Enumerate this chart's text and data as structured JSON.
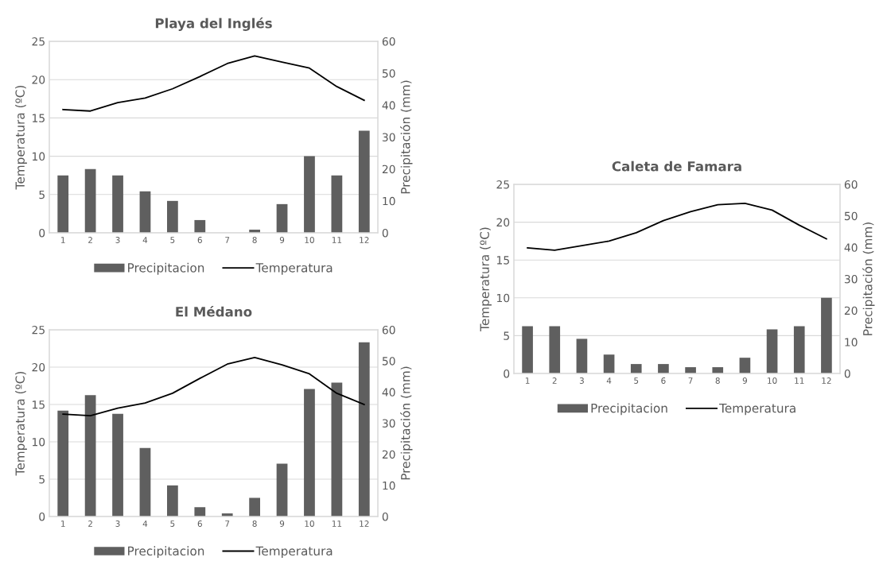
{
  "chart_data": [
    {
      "type": "bar",
      "title": "Playa del Inglés",
      "ylabel": "Temperatura (ºC)",
      "y2label": "Precipitación (mm)",
      "categories": [
        "1",
        "2",
        "3",
        "4",
        "5",
        "6",
        "7",
        "8",
        "9",
        "10",
        "11",
        "12"
      ],
      "ylim": [
        0,
        25
      ],
      "yticks": [
        0,
        5,
        10,
        15,
        20,
        25
      ],
      "y2lim": [
        0,
        60
      ],
      "y2ticks": [
        0,
        10,
        20,
        30,
        40,
        50,
        60
      ],
      "grid": "y",
      "legend": "bottom",
      "series": [
        {
          "name": "Precipitacion",
          "axis": "y2",
          "color": "#5f5f5f",
          "values": [
            18,
            20,
            18,
            13,
            10,
            4,
            0,
            1,
            9,
            24,
            18,
            32
          ]
        },
        {
          "name": "Temperatura",
          "type": "line",
          "color": "#000000",
          "values": [
            16.1,
            15.9,
            17.0,
            17.6,
            18.8,
            20.4,
            22.1,
            23.1,
            22.3,
            21.5,
            19.1,
            17.3
          ]
        }
      ]
    },
    {
      "type": "bar",
      "title": "El Médano",
      "ylabel": "Temperatura (ºC)",
      "y2label": "Precipitación (mm)",
      "categories": [
        "1",
        "2",
        "3",
        "4",
        "5",
        "6",
        "7",
        "8",
        "9",
        "10",
        "11",
        "12"
      ],
      "ylim": [
        0,
        25
      ],
      "yticks": [
        0,
        5,
        10,
        15,
        20,
        25
      ],
      "y2lim": [
        0,
        60
      ],
      "y2ticks": [
        0,
        10,
        20,
        30,
        40,
        50,
        60
      ],
      "grid": "y",
      "legend": "bottom",
      "series": [
        {
          "name": "Precipitacion",
          "axis": "y2",
          "color": "#5f5f5f",
          "values": [
            34,
            39,
            33,
            22,
            10,
            3,
            1,
            6,
            17,
            41,
            43,
            56
          ]
        },
        {
          "name": "Temperatura",
          "type": "line",
          "color": "#000000",
          "values": [
            13.7,
            13.5,
            14.5,
            15.2,
            16.5,
            18.5,
            20.4,
            21.3,
            20.3,
            19.1,
            16.5,
            15.0
          ]
        }
      ]
    },
    {
      "type": "bar",
      "title": "Caleta de Famara",
      "ylabel": "Temperatura (ºC)",
      "y2label": "Precipitación (mm)",
      "categories": [
        "1",
        "2",
        "3",
        "4",
        "5",
        "6",
        "7",
        "8",
        "9",
        "10",
        "11",
        "12"
      ],
      "ylim": [
        0,
        25
      ],
      "yticks": [
        0,
        5,
        10,
        15,
        20,
        25
      ],
      "y2lim": [
        0,
        60
      ],
      "y2ticks": [
        0,
        10,
        20,
        30,
        40,
        50,
        60
      ],
      "grid": "y",
      "legend": "bottom",
      "series": [
        {
          "name": "Precipitacion",
          "axis": "y2",
          "color": "#5f5f5f",
          "values": [
            15,
            15,
            11,
            6,
            3,
            3,
            2,
            2,
            5,
            14,
            15,
            24
          ]
        },
        {
          "name": "Temperatura",
          "type": "line",
          "color": "#000000",
          "values": [
            16.6,
            16.3,
            16.9,
            17.5,
            18.6,
            20.2,
            21.4,
            22.3,
            22.5,
            21.6,
            19.6,
            17.8
          ]
        }
      ]
    }
  ]
}
